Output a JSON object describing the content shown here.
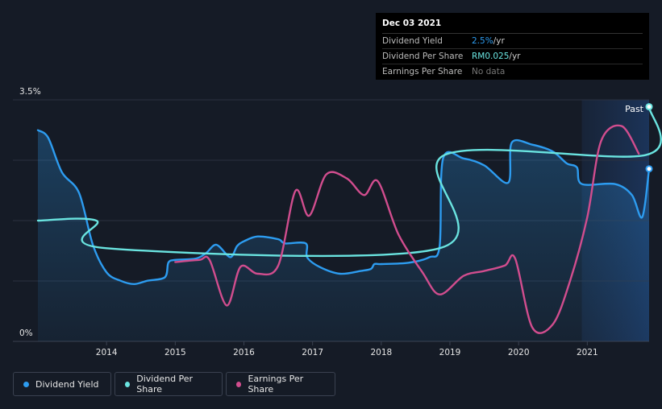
{
  "chart_data": {
    "type": "line",
    "title": "",
    "ylabel": "",
    "ylim": [
      0,
      3.5
    ],
    "y_tick_labels": [
      "3.5%",
      "0%"
    ],
    "x_tick_labels": [
      "2014",
      "2015",
      "2016",
      "2017",
      "2018",
      "2019",
      "2020",
      "2021"
    ],
    "xlim": [
      2013.0,
      2021.9
    ],
    "forecast_region_label": "Past",
    "series": [
      {
        "name": "Dividend Yield",
        "color": "#2d9cf0",
        "x": [
          2013.0,
          2013.15,
          2013.35,
          2013.6,
          2013.8,
          2014.0,
          2014.2,
          2014.4,
          2014.6,
          2014.85,
          2014.9,
          2015.0,
          2015.3,
          2015.45,
          2015.6,
          2015.8,
          2015.9,
          2016.0,
          2016.2,
          2016.5,
          2016.6,
          2016.9,
          2016.92,
          2017.1,
          2017.4,
          2017.7,
          2017.85,
          2017.9,
          2018.0,
          2018.4,
          2018.7,
          2018.85,
          2018.9,
          2019.2,
          2019.5,
          2019.85,
          2019.9,
          2020.2,
          2020.5,
          2020.7,
          2020.85,
          2020.92,
          2021.4,
          2021.65,
          2021.8,
          2021.9
        ],
        "values": [
          3.06,
          2.95,
          2.45,
          2.15,
          1.4,
          1.0,
          0.88,
          0.83,
          0.88,
          0.93,
          1.14,
          1.18,
          1.2,
          1.28,
          1.4,
          1.22,
          1.38,
          1.45,
          1.52,
          1.48,
          1.42,
          1.42,
          1.22,
          1.08,
          0.98,
          1.02,
          1.05,
          1.12,
          1.12,
          1.14,
          1.22,
          1.38,
          2.65,
          2.65,
          2.55,
          2.3,
          2.88,
          2.85,
          2.75,
          2.58,
          2.52,
          2.28,
          2.28,
          2.12,
          1.8,
          2.5
        ]
      },
      {
        "name": "Dividend Per Share",
        "color": "#6ae4e0",
        "x": [
          2013.0,
          2013.85,
          2014.0,
          2018.85,
          2018.92,
          2021.85,
          2021.9
        ],
        "values": [
          1.75,
          1.75,
          1.35,
          1.35,
          2.7,
          2.7,
          3.4
        ]
      },
      {
        "name": "Earnings Per Share",
        "color": "#d14d8e",
        "x": [
          2015.0,
          2015.35,
          2015.5,
          2015.75,
          2015.95,
          2016.2,
          2016.5,
          2016.75,
          2016.95,
          2017.2,
          2017.5,
          2017.75,
          2017.95,
          2018.25,
          2018.6,
          2018.85,
          2019.2,
          2019.5,
          2019.8,
          2019.95,
          2020.2,
          2020.5,
          2020.75,
          2021.0,
          2021.2,
          2021.5,
          2021.75
        ],
        "values": [
          1.15,
          1.18,
          1.18,
          0.52,
          1.08,
          0.98,
          1.1,
          2.18,
          1.82,
          2.42,
          2.36,
          2.12,
          2.32,
          1.55,
          1.0,
          0.68,
          0.95,
          1.02,
          1.1,
          1.2,
          0.2,
          0.25,
          0.88,
          1.8,
          2.9,
          3.12,
          2.72
        ]
      }
    ],
    "tooltip": {
      "date": "Dec 03 2021",
      "rows": [
        {
          "label": "Dividend Yield",
          "value": "2.5%",
          "unit": " /yr"
        },
        {
          "label": "Dividend Per Share",
          "value": "RM0.025",
          "unit": " /yr"
        },
        {
          "label": "Earnings Per Share",
          "value": "No data",
          "unit": ""
        }
      ]
    },
    "legend": [
      "Dividend Yield",
      "Dividend Per Share",
      "Earnings Per Share"
    ]
  }
}
